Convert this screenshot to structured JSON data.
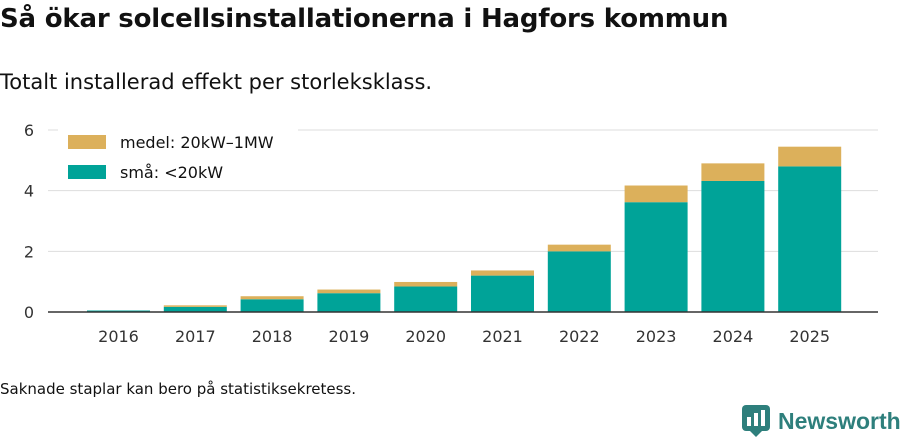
{
  "title": "Så ökar solcellsinstallationerna i Hagfors kommun",
  "subtitle": "Totalt installerad effekt per storleksklass.",
  "note": "Saknade staplar kan bero på statistiksekretess.",
  "brand": {
    "name": "Newsworthy",
    "icon": "newsworthy-logo-icon",
    "color": "#2e7f7c"
  },
  "chart_data": {
    "type": "bar",
    "stacked": true,
    "categories": [
      "2016",
      "2017",
      "2018",
      "2019",
      "2020",
      "2021",
      "2022",
      "2023",
      "2024",
      "2025"
    ],
    "series": [
      {
        "name": "små: <20kW",
        "color": "#00a398",
        "values": [
          0.05,
          0.17,
          0.42,
          0.62,
          0.84,
          1.2,
          2.0,
          3.62,
          4.32,
          4.8
        ]
      },
      {
        "name": "medel: 20kW–1MW",
        "color": "#dcb05b",
        "values": [
          0.0,
          0.05,
          0.1,
          0.12,
          0.15,
          0.17,
          0.22,
          0.55,
          0.58,
          0.65
        ]
      }
    ],
    "legend_order": [
      1,
      0
    ],
    "yticks": [
      0,
      2,
      4,
      6
    ],
    "ylim": [
      0,
      6
    ],
    "xlabel": "",
    "ylabel": "",
    "grid": true,
    "legend_position": "top-left"
  }
}
